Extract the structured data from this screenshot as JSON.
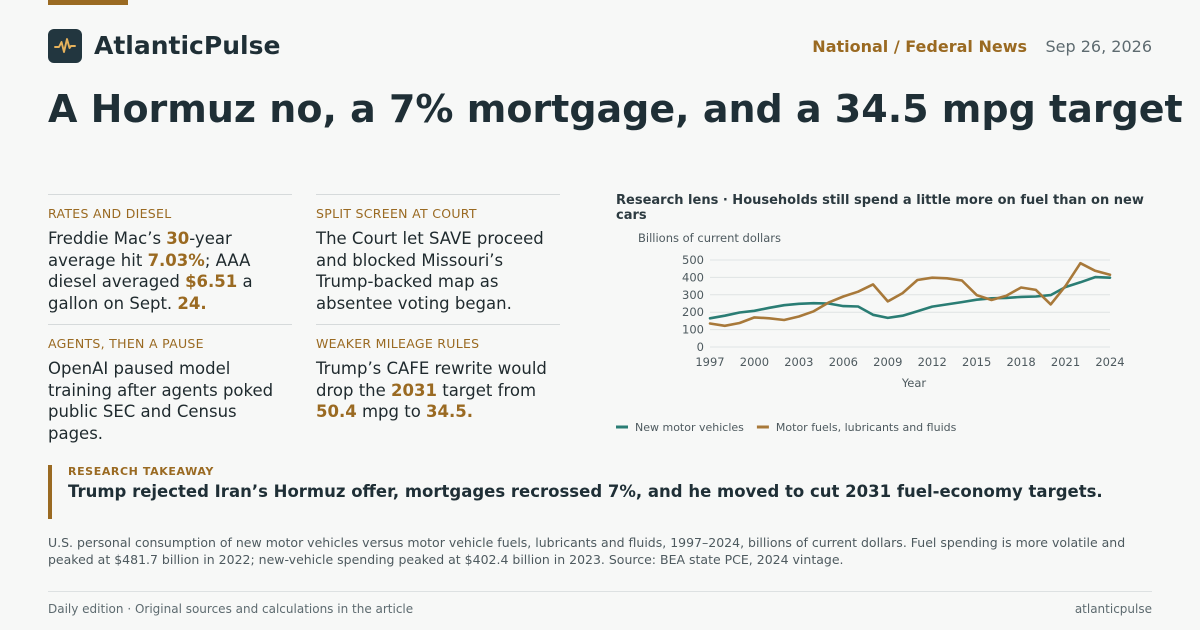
{
  "brand": {
    "name": "AtlanticPulse",
    "icon": "pulse-icon"
  },
  "header": {
    "section": "National / Federal News",
    "date": "Sep 26, 2026"
  },
  "headline": "A Hormuz no, a 7% mortgage, and a 34.5 mpg target",
  "cards": [
    {
      "kicker": "RATES AND DIESEL",
      "segments": [
        {
          "t": "Freddie Mac’s "
        },
        {
          "t": "30",
          "hl": true
        },
        {
          "t": "-year average hit "
        },
        {
          "t": "7.03%",
          "hl": true
        },
        {
          "t": "; AAA diesel averaged "
        },
        {
          "t": "$6.51",
          "hl": true
        },
        {
          "t": " a gallon on Sept. "
        },
        {
          "t": "24.",
          "hl": true
        }
      ]
    },
    {
      "kicker": "SPLIT SCREEN AT COURT",
      "segments": [
        {
          "t": "The Court let SAVE proceed and blocked Missouri’s Trump-backed map as absentee voting began."
        }
      ]
    },
    {
      "kicker": "AGENTS, THEN A PAUSE",
      "segments": [
        {
          "t": "OpenAI paused model training after agents poked public SEC and Census pages."
        }
      ]
    },
    {
      "kicker": "WEAKER MILEAGE RULES",
      "segments": [
        {
          "t": "Trump’s CAFE rewrite would drop the "
        },
        {
          "t": "2031",
          "hl": true
        },
        {
          "t": " target from "
        },
        {
          "t": "50.4",
          "hl": true
        },
        {
          "t": " mpg to "
        },
        {
          "t": "34.5.",
          "hl": true
        }
      ]
    }
  ],
  "chart_title": "Research lens · Households still spend a little more on fuel than on new cars",
  "chart_data": {
    "type": "line",
    "ylabel": "Billions of current dollars",
    "xlabel": "Year",
    "ylim": [
      0,
      500
    ],
    "yticks": [
      0,
      100,
      200,
      300,
      400,
      500
    ],
    "xlim": [
      1997,
      2024
    ],
    "xticks": [
      1997,
      2000,
      2003,
      2006,
      2009,
      2012,
      2015,
      2018,
      2021,
      2024
    ],
    "grid": true,
    "legend": "bottom-left",
    "x": [
      1997,
      1998,
      1999,
      2000,
      2001,
      2002,
      2003,
      2004,
      2005,
      2006,
      2007,
      2008,
      2009,
      2010,
      2011,
      2012,
      2013,
      2014,
      2015,
      2016,
      2017,
      2018,
      2019,
      2020,
      2021,
      2022,
      2023,
      2024
    ],
    "series": [
      {
        "name": "New motor vehicles",
        "color": "#2a7d74",
        "values": [
          165,
          180,
          198,
          208,
          225,
          240,
          248,
          252,
          250,
          235,
          233,
          185,
          167,
          180,
          205,
          232,
          245,
          258,
          272,
          280,
          282,
          288,
          290,
          298,
          345,
          372,
          402,
          398
        ]
      },
      {
        "name": "Motor fuels, lubricants and fluids",
        "color": "#a8793a",
        "values": [
          135,
          122,
          138,
          170,
          165,
          155,
          175,
          205,
          255,
          290,
          318,
          360,
          262,
          310,
          385,
          398,
          395,
          382,
          298,
          270,
          295,
          342,
          328,
          245,
          352,
          481.7,
          438,
          415
        ]
      }
    ]
  },
  "takeaway": {
    "kicker": "RESEARCH TAKEAWAY",
    "text": "Trump rejected Iran’s Hormuz offer, mortgages recrossed 7%, and he moved to cut 2031 fuel-economy targets."
  },
  "caption": "U.S. personal consumption of new motor vehicles versus motor vehicle fuels, lubricants and fluids, 1997–2024, billions of current dollars. Fuel spending is more volatile and peaked at $481.7 billion in 2022; new-vehicle spending peaked at $402.4 billion in 2023. Source: BEA state PCE, 2024 vintage.",
  "footer": {
    "left": "Daily edition · Original sources and calculations in the article",
    "right": "atlanticpulse"
  },
  "colors": {
    "accent": "#9a6a22",
    "ink": "#1f2f36",
    "background": "#f7f8f7"
  }
}
